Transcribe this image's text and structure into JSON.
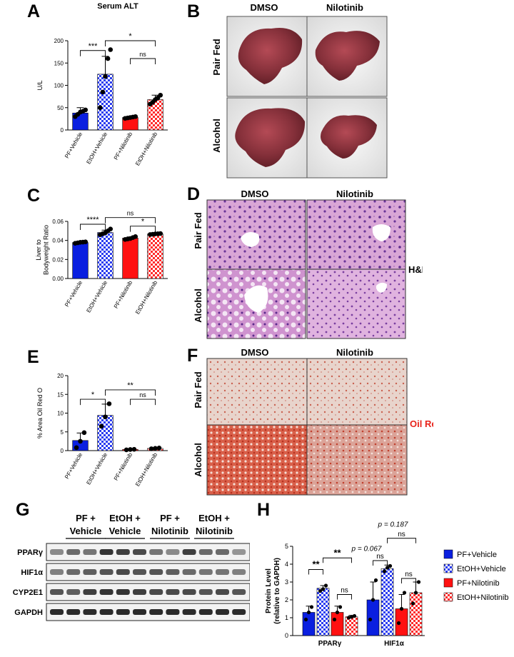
{
  "colors": {
    "blue": "#0a1fe0",
    "red": "#ff1111",
    "check_blue": "#2a3cf0",
    "check_red": "#ff2a2a",
    "he_pink": "#d9a6d6",
    "oil_pink": "#e8c8c0",
    "oil_red": "#cc3a25",
    "liver": "#7c2730"
  },
  "icons": [
    "liver-photo",
    "histology-image"
  ],
  "panel_labels": {
    "a": "A",
    "b": "B",
    "c": "C",
    "d": "D",
    "e": "E",
    "f": "F",
    "g": "G",
    "h": "H"
  },
  "group_labels": [
    "PF+Vehicle",
    "EtOH+Vehicle",
    "PF+Nilotinib",
    "EtOH+Nilotinib"
  ],
  "image_panels": {
    "col_dmso": "DMSO",
    "col_nilotinib": "Nilotinib",
    "row_pair_fed": "Pair Fed",
    "row_alcohol": "Alcohol",
    "he_label": "H&E",
    "oil_label": "Oil Red O"
  },
  "western": {
    "groups": [
      {
        "line1": "PF +",
        "line2": "Vehicle"
      },
      {
        "line1": "EtOH +",
        "line2": "Vehicle"
      },
      {
        "line1": "PF +",
        "line2": "Nilotinib"
      },
      {
        "line1": "EtOH +",
        "line2": "Nilotinib"
      }
    ],
    "proteins": [
      "PPARγ",
      "HIF1α",
      "CYP2E1",
      "GAPDH"
    ],
    "band_intensity": [
      [
        0.45,
        0.6,
        0.55,
        0.85,
        0.8,
        0.75,
        0.55,
        0.45,
        0.8,
        0.6,
        0.6,
        0.4
      ],
      [
        0.5,
        0.6,
        0.65,
        0.7,
        0.75,
        0.7,
        0.7,
        0.65,
        0.6,
        0.55,
        0.55,
        0.5
      ],
      [
        0.7,
        0.65,
        0.8,
        0.85,
        0.85,
        0.8,
        0.75,
        0.75,
        0.75,
        0.7,
        0.75,
        0.7
      ],
      [
        0.9,
        0.9,
        0.9,
        0.9,
        0.9,
        0.9,
        0.9,
        0.9,
        0.9,
        0.9,
        0.9,
        0.9
      ]
    ]
  },
  "chart_data": [
    {
      "id": "A",
      "type": "bar",
      "title": "Serum ALT",
      "ylabel": "U/L",
      "ylim": [
        0,
        200
      ],
      "ticks": [
        "0",
        "50",
        "100",
        "150",
        "200"
      ],
      "categories": [
        "PF+Vehicle",
        "EtOH+Vehicle",
        "PF+Nilotinib",
        "EtOH+Nilotinib"
      ],
      "values": [
        38,
        125,
        28,
        68
      ],
      "errors": [
        12,
        40,
        3,
        10
      ],
      "points": [
        [
          30,
          35,
          40,
          42,
          45
        ],
        [
          50,
          85,
          120,
          160,
          180
        ],
        [
          26,
          27,
          28,
          29,
          30
        ],
        [
          58,
          62,
          68,
          72,
          78
        ]
      ],
      "sig": [
        {
          "from": 0,
          "to": 1,
          "label": "***",
          "y": 178
        },
        {
          "from": 2,
          "to": 3,
          "label": "ns",
          "y": 160
        },
        {
          "from": 1,
          "to": 3,
          "label": "*",
          "y": 200
        }
      ]
    },
    {
      "id": "C",
      "type": "bar",
      "title": "",
      "ylabel": "Liver to Bodyweight Ratio",
      "ylim": [
        0,
        0.06
      ],
      "ticks": [
        "0.00",
        "0.02",
        "0.04",
        "0.06"
      ],
      "categories": [
        "PF+Vehicle",
        "EtOH+Vehicle",
        "PF+Nilotinib",
        "EtOH+Nilotinib"
      ],
      "values": [
        0.0378,
        0.0483,
        0.0425,
        0.0468
      ],
      "errors": [
        0.0008,
        0.0025,
        0.0012,
        0.0006
      ],
      "points": [
        [
          0.037,
          0.0375,
          0.038,
          0.0382,
          0.0385
        ],
        [
          0.046,
          0.047,
          0.048,
          0.05,
          0.052
        ],
        [
          0.041,
          0.0415,
          0.042,
          0.043,
          0.044
        ],
        [
          0.0462,
          0.0465,
          0.0468,
          0.047,
          0.0472
        ]
      ],
      "sig": [
        {
          "from": 0,
          "to": 1,
          "label": "****",
          "y": 0.057
        },
        {
          "from": 2,
          "to": 3,
          "label": "*",
          "y": 0.055
        },
        {
          "from": 1,
          "to": 3,
          "label": "ns",
          "y": 0.064
        }
      ]
    },
    {
      "id": "E",
      "type": "bar",
      "title": "",
      "ylabel": "% Area Oil Red O",
      "ylim": [
        0,
        20
      ],
      "ticks": [
        "0",
        "5",
        "10",
        "15",
        "20"
      ],
      "categories": [
        "PF+Vehicle",
        "EtOH+Vehicle",
        "PF+Nilotinib",
        "EtOH+Nilotinib"
      ],
      "values": [
        2.7,
        9.4,
        0.3,
        0.6
      ],
      "errors": [
        2.0,
        3.0,
        0.1,
        0.15
      ],
      "points": [
        [
          0.8,
          2.5,
          4.8
        ],
        [
          6.5,
          9.0,
          12.5
        ],
        [
          0.2,
          0.3,
          0.35
        ],
        [
          0.5,
          0.6,
          0.7
        ]
      ],
      "sig": [
        {
          "from": 0,
          "to": 1,
          "label": "*",
          "y": 13.7
        },
        {
          "from": 2,
          "to": 3,
          "label": "ns",
          "y": 13.7
        },
        {
          "from": 1,
          "to": 3,
          "label": "**",
          "y": 16.2
        }
      ]
    },
    {
      "id": "H",
      "type": "bar",
      "title": "",
      "ylabel": "Protein Level (relative to GAPDH)",
      "ylim": [
        0,
        5
      ],
      "ticks": [
        "0",
        "1",
        "2",
        "3",
        "4",
        "5"
      ],
      "categories": [
        "PPARγ",
        "HIF1α"
      ],
      "series": [
        {
          "name": "PF+Vehicle",
          "values": [
            1.3,
            2.0
          ],
          "errors": [
            0.35,
            1.0
          ],
          "points": [
            [
              0.9,
              1.3,
              1.6
            ],
            [
              0.9,
              2.0,
              3.1
            ]
          ]
        },
        {
          "name": "EtOH+Vehicle",
          "values": [
            2.65,
            3.75
          ],
          "errors": [
            0.15,
            0.2
          ],
          "points": [
            [
              2.5,
              2.6,
              2.8
            ],
            [
              3.6,
              3.8,
              3.9
            ]
          ]
        },
        {
          "name": "PF+Nilotinib",
          "values": [
            1.3,
            1.5
          ],
          "errors": [
            0.35,
            0.8
          ],
          "points": [
            [
              0.9,
              1.3,
              1.6
            ],
            [
              0.7,
              1.5,
              2.4
            ]
          ]
        },
        {
          "name": "EtOH+Nilotinib",
          "values": [
            1.05,
            2.4
          ],
          "errors": [
            0.08,
            0.6
          ],
          "points": [
            [
              1.0,
              1.05,
              1.1
            ],
            [
              1.8,
              2.4,
              3.0
            ]
          ]
        }
      ],
      "sig": [
        {
          "label": "**"
        },
        {
          "label": "**"
        },
        {
          "label": "ns"
        },
        {
          "label": "ns"
        },
        {
          "label": "ns"
        },
        {
          "label": "ns"
        }
      ],
      "pvalues": [
        "p = 0.067",
        "p = 0.187"
      ]
    }
  ]
}
